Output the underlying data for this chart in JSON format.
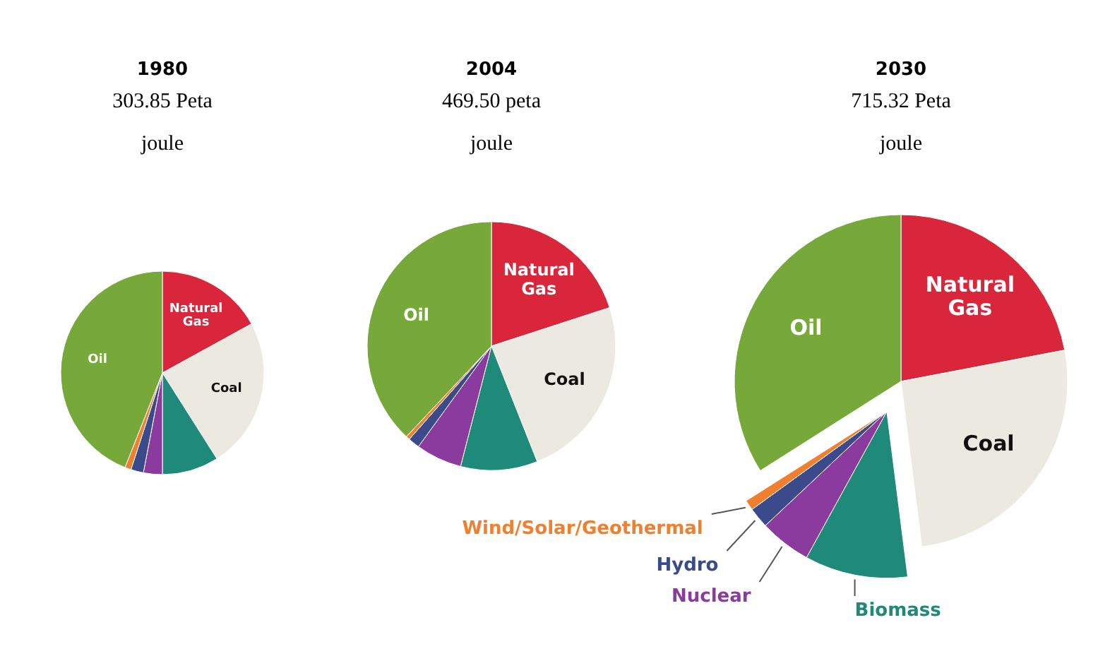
{
  "chart_data": [
    {
      "type": "pie",
      "title": "1980",
      "subtitle": "303.85 Peta joule",
      "categories": [
        "Natural Gas",
        "Coal",
        null,
        null,
        null,
        null,
        "Oil"
      ],
      "values": [
        17,
        24,
        9,
        3,
        2,
        1,
        44
      ],
      "colors": [
        "#d9263a",
        "#eceae0",
        "#1f8a7a",
        "#8b3a9e",
        "#3b4a8a",
        "#f08030",
        "#76a93a"
      ]
    },
    {
      "type": "pie",
      "title": "2004",
      "subtitle": "469.50 peta joule",
      "categories": [
        "Natural Gas",
        "Coal",
        null,
        null,
        null,
        null,
        "Oil"
      ],
      "values": [
        20,
        24,
        10,
        6,
        1.5,
        0.5,
        38
      ],
      "colors": [
        "#d9263a",
        "#eceae0",
        "#1f8a7a",
        "#8b3a9e",
        "#3b4a8a",
        "#f08030",
        "#76a93a"
      ]
    },
    {
      "type": "pie",
      "title": "2030",
      "subtitle": "715.32 Peta joule",
      "categories": [
        "Natural Gas",
        "Coal",
        "Biomass",
        "Nuclear",
        "Hydro",
        "Wind/Solar/Geothermal",
        "Oil"
      ],
      "values": [
        22,
        26,
        10,
        5,
        2,
        1,
        34
      ],
      "colors": [
        "#d9263a",
        "#eceae0",
        "#1f8a7a",
        "#8b3a9e",
        "#3b4a8a",
        "#f08030",
        "#76a93a"
      ]
    }
  ]
}
